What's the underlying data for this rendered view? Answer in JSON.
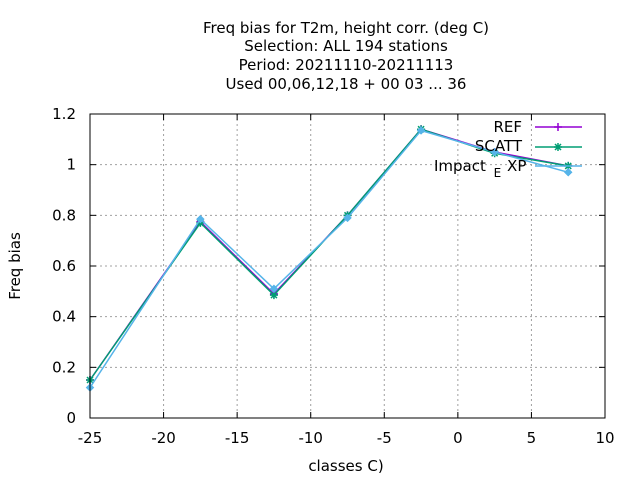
{
  "chart_data": {
    "type": "line",
    "title_lines": [
      "Freq bias  for T2m, height corr. (deg C)",
      "Selection: ALL    194 stations",
      "Period: 20211110-20211113",
      "Used  00,06,12,18 + 00 03 ... 36"
    ],
    "xlabel": "classes C)",
    "ylabel": "Freq bias",
    "xlim": [
      -25,
      10
    ],
    "ylim": [
      0,
      1.2
    ],
    "x_ticks": [
      -25,
      -20,
      -15,
      -10,
      -5,
      0,
      5,
      10
    ],
    "x_tick_labels": [
      "-25",
      "-20",
      "-15",
      "-10",
      "-5",
      "0",
      "5",
      "10"
    ],
    "y_ticks": [
      0,
      0.2,
      0.4,
      0.6,
      0.8,
      1.0,
      1.2
    ],
    "y_tick_labels": [
      "0",
      "0.2",
      "0.4",
      "0.6",
      "0.8",
      "1",
      "1.2"
    ],
    "grid": true,
    "legend_position": "top-right",
    "legend_labels": [
      "REF",
      "SCATT",
      "Impact"
    ],
    "legend_subscript": "E",
    "legend_suffix": "XP",
    "series": [
      {
        "name": "REF",
        "color": "#9400d3",
        "marker": "plus",
        "x": [
          -25,
          -17.5,
          -12.5,
          -7.5,
          -2.5,
          2.5,
          7.5
        ],
        "y": [
          0.15,
          0.775,
          0.49,
          0.8,
          1.14,
          1.05,
          0.995
        ]
      },
      {
        "name": "SCATT",
        "color": "#009e73",
        "marker": "star",
        "x": [
          -25,
          -17.5,
          -12.5,
          -7.5,
          -2.5,
          2.5,
          7.5
        ],
        "y": [
          0.15,
          0.77,
          0.485,
          0.8,
          1.14,
          1.045,
          0.995
        ]
      },
      {
        "name": "Impact",
        "color": "#56b4e9",
        "marker": "diamond",
        "x": [
          -25,
          -17.5,
          -12.5,
          -7.5,
          -2.5,
          2.5,
          7.5
        ],
        "y": [
          0.12,
          0.785,
          0.51,
          0.79,
          1.135,
          1.05,
          0.97
        ]
      }
    ]
  }
}
